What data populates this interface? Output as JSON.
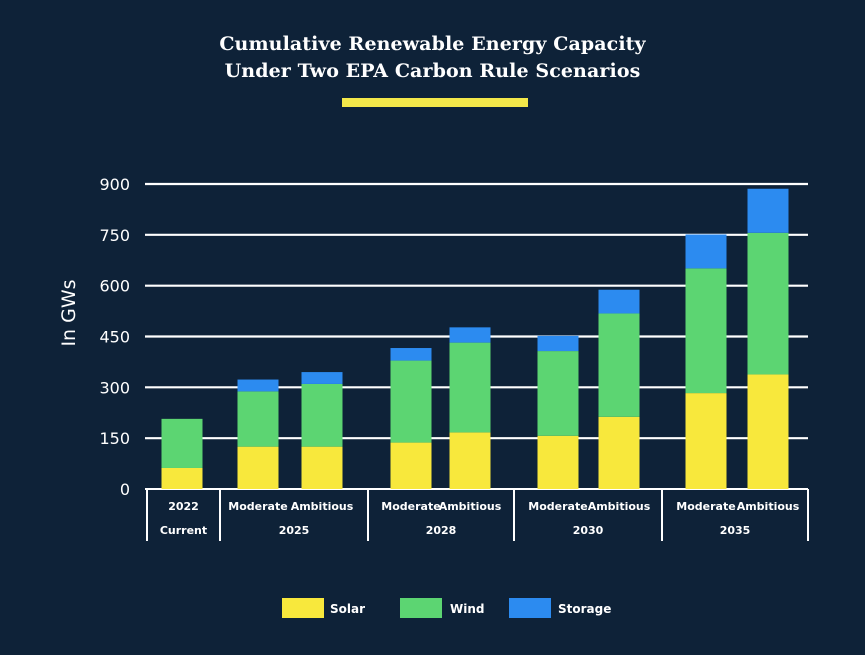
{
  "chart_data": {
    "type": "bar",
    "stacked": true,
    "title": "Cumulative Renewable Energy Capacity",
    "subtitle": "Under Two EPA Carbon Rule Scenarios",
    "ylabel": "In GWs",
    "xlabel": "",
    "ylim": [
      0,
      900
    ],
    "yticks": [
      0,
      150,
      300,
      450,
      600,
      750,
      900
    ],
    "grid": true,
    "legend_position": "bottom",
    "groups": [
      {
        "year": "2022",
        "bars": [
          "Current"
        ],
        "year_on_top": true
      },
      {
        "year": "2025",
        "bars": [
          "Moderate",
          "Ambitious"
        ],
        "year_on_top": false
      },
      {
        "year": "2028",
        "bars": [
          "Moderate",
          "Ambitious"
        ],
        "year_on_top": false
      },
      {
        "year": "2030",
        "bars": [
          "Moderate",
          "Ambitious"
        ],
        "year_on_top": false
      },
      {
        "year": "2035",
        "bars": [
          "Moderate",
          "Ambitious"
        ],
        "year_on_top": false
      }
    ],
    "categories": [
      "2022 Current",
      "2025 Moderate",
      "2025 Ambitious",
      "2028 Moderate",
      "2028 Ambitious",
      "2030 Moderate",
      "2030 Ambitious",
      "2035 Moderate",
      "2035 Ambitious"
    ],
    "series": [
      {
        "name": "Solar",
        "color": "#f8e83c",
        "values": [
          62,
          125,
          125,
          137,
          167,
          157,
          213,
          283,
          338
        ]
      },
      {
        "name": "Wind",
        "color": "#5cd572",
        "values": [
          145,
          163,
          185,
          242,
          265,
          250,
          305,
          368,
          418
        ]
      },
      {
        "name": "Storage",
        "color": "#2c8bf0",
        "values": [
          0,
          35,
          35,
          37,
          45,
          45,
          70,
          100,
          130
        ]
      }
    ]
  },
  "colors": {
    "background": "#0e2238",
    "accent": "#f3e84a",
    "text": "#ffffff"
  }
}
